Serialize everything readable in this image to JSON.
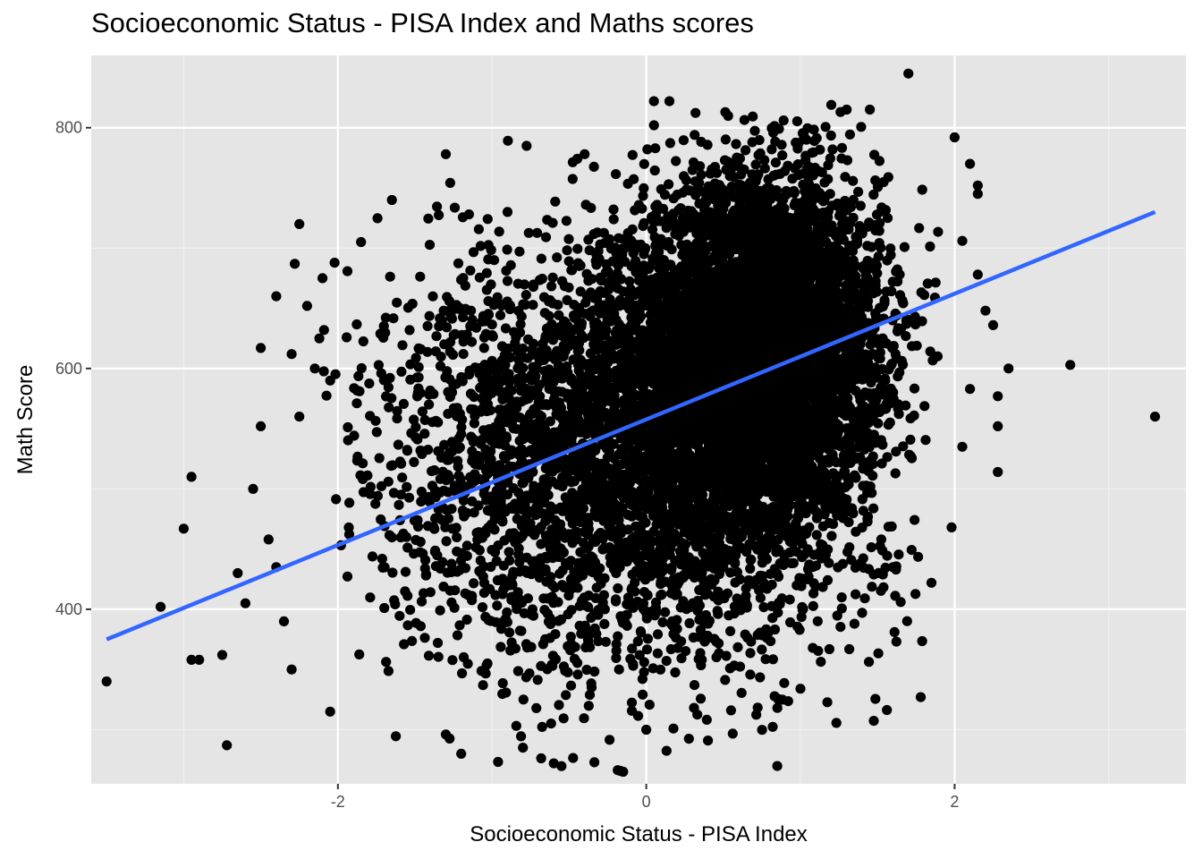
{
  "colors": {
    "panel_background": "#e5e5e5",
    "grid_major": "#ffffff",
    "grid_minor": "#f0f0f0",
    "points": "#000000",
    "trend_line": "#3366ff",
    "tick_text": "#4d4d4d"
  },
  "chart_data": {
    "type": "scatter",
    "title": "Socioeconomic Status - PISA Index and Maths scores",
    "xlabel": "Socioeconomic Status - PISA Index",
    "ylabel": "Math Score",
    "xlim": [
      -3.6,
      3.5
    ],
    "ylim": [
      255,
      860
    ],
    "x_ticks": [
      -2,
      0,
      2
    ],
    "x_tick_labels": [
      "-2",
      "0",
      "2"
    ],
    "y_ticks": [
      400,
      600,
      800
    ],
    "y_tick_labels": [
      "400",
      "600",
      "800"
    ],
    "grid": true,
    "legend": "none",
    "trend_line": {
      "method": "linear",
      "x": [
        -3.5,
        3.3
      ],
      "y": [
        375,
        730
      ]
    },
    "point_cloud": {
      "approximate_count": 9000,
      "main_cluster": {
        "x_mean": 0.75,
        "x_sd": 0.38,
        "y_mean": 620,
        "y_sd": 70
      },
      "secondary_cluster": {
        "x_mean": -0.1,
        "x_sd": 0.8,
        "y_mean": 525,
        "y_sd": 90
      }
    },
    "outliers": [
      {
        "x": -3.5,
        "y": 340
      },
      {
        "x": -3.15,
        "y": 402
      },
      {
        "x": -3.0,
        "y": 467
      },
      {
        "x": -2.95,
        "y": 510
      },
      {
        "x": -2.9,
        "y": 358
      },
      {
        "x": -2.95,
        "y": 358
      },
      {
        "x": -2.75,
        "y": 362
      },
      {
        "x": -2.72,
        "y": 287
      },
      {
        "x": -2.65,
        "y": 430
      },
      {
        "x": -2.6,
        "y": 405
      },
      {
        "x": -2.55,
        "y": 500
      },
      {
        "x": -2.5,
        "y": 552
      },
      {
        "x": -2.5,
        "y": 617
      },
      {
        "x": -2.45,
        "y": 458
      },
      {
        "x": -2.4,
        "y": 435
      },
      {
        "x": -2.4,
        "y": 660
      },
      {
        "x": -2.3,
        "y": 612
      },
      {
        "x": -2.25,
        "y": 560
      },
      {
        "x": -2.25,
        "y": 720
      },
      {
        "x": -2.28,
        "y": 687
      },
      {
        "x": -2.2,
        "y": 652
      },
      {
        "x": -2.15,
        "y": 600
      },
      {
        "x": -2.1,
        "y": 675
      },
      {
        "x": -2.12,
        "y": 625
      },
      {
        "x": -2.05,
        "y": 590
      },
      {
        "x": -2.05,
        "y": 315
      },
      {
        "x": -2.3,
        "y": 350
      },
      {
        "x": -2.35,
        "y": 390
      },
      {
        "x": -1.85,
        "y": 705
      },
      {
        "x": -1.65,
        "y": 740
      },
      {
        "x": -1.3,
        "y": 778
      },
      {
        "x": -1.15,
        "y": 728
      },
      {
        "x": -0.9,
        "y": 730
      },
      {
        "x": -0.4,
        "y": 778
      },
      {
        "x": 0.05,
        "y": 822
      },
      {
        "x": 0.15,
        "y": 822
      },
      {
        "x": 0.05,
        "y": 802
      },
      {
        "x": 1.45,
        "y": 815
      },
      {
        "x": 1.7,
        "y": 845
      },
      {
        "x": 1.2,
        "y": 819
      },
      {
        "x": 1.3,
        "y": 815
      },
      {
        "x": 2.0,
        "y": 792
      },
      {
        "x": 2.1,
        "y": 770
      },
      {
        "x": 2.15,
        "y": 752
      },
      {
        "x": 2.15,
        "y": 745
      },
      {
        "x": 2.05,
        "y": 706
      },
      {
        "x": 2.15,
        "y": 678
      },
      {
        "x": 2.2,
        "y": 648
      },
      {
        "x": 2.25,
        "y": 636
      },
      {
        "x": 2.35,
        "y": 600
      },
      {
        "x": 2.1,
        "y": 583
      },
      {
        "x": 2.28,
        "y": 577
      },
      {
        "x": 2.28,
        "y": 552
      },
      {
        "x": 2.28,
        "y": 514
      },
      {
        "x": 2.05,
        "y": 535
      },
      {
        "x": 1.98,
        "y": 468
      },
      {
        "x": 1.85,
        "y": 422
      },
      {
        "x": 1.78,
        "y": 327
      },
      {
        "x": 2.75,
        "y": 603
      },
      {
        "x": 3.3,
        "y": 560
      },
      {
        "x": -0.15,
        "y": 265
      },
      {
        "x": -0.6,
        "y": 272
      },
      {
        "x": 0.4,
        "y": 291
      },
      {
        "x": -1.2,
        "y": 280
      },
      {
        "x": -0.8,
        "y": 285
      },
      {
        "x": 0.85,
        "y": 318
      },
      {
        "x": 1.0,
        "y": 334
      },
      {
        "x": 1.4,
        "y": 397
      },
      {
        "x": 0.0,
        "y": 300
      },
      {
        "x": -1.3,
        "y": 296
      },
      {
        "x": 0.55,
        "y": 316
      },
      {
        "x": 1.65,
        "y": 406
      },
      {
        "x": 1.6,
        "y": 435
      },
      {
        "x": 1.35,
        "y": 388
      }
    ]
  }
}
